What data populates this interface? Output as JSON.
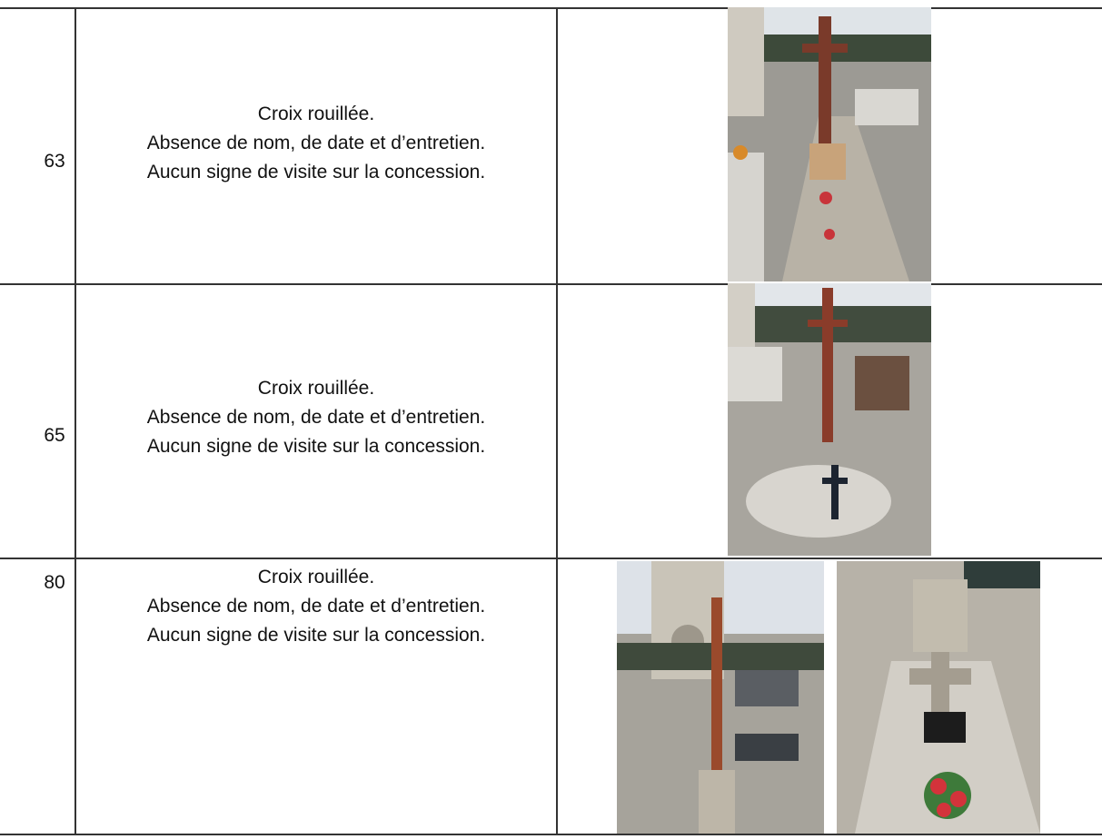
{
  "table": {
    "rows": [
      {
        "number": "63",
        "lines": [
          "Croix rouillée.",
          "Absence de nom, de date et d’entretien.",
          "Aucun signe de visite sur la concession."
        ]
      },
      {
        "number": "65",
        "lines": [
          "Croix rouillée.",
          "Absence de nom, de date et d’entretien.",
          "Aucun signe de visite sur la concession."
        ]
      },
      {
        "number": "80",
        "lines": [
          "Croix rouillée.",
          "Absence de nom, de date et d’entretien.",
          "Aucun signe de visite sur la concession."
        ]
      }
    ]
  }
}
